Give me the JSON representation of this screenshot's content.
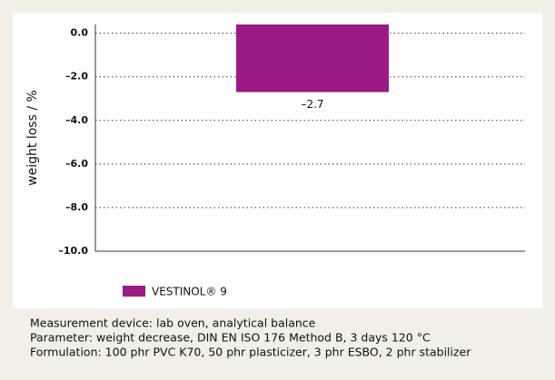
{
  "chart_data": {
    "type": "bar",
    "ylabel": "weight loss / %",
    "series": [
      {
        "name": "VESTINOL® 9",
        "color": "#9c1a84",
        "values": [
          -2.7
        ],
        "value_labels": [
          "–2.7"
        ]
      }
    ],
    "ylim": [
      0.4,
      -10
    ],
    "yticks": [
      {
        "value": 0,
        "label": "0.0"
      },
      {
        "value": -2,
        "label": "–2.0"
      },
      {
        "value": -4,
        "label": "–4.0"
      },
      {
        "value": -6,
        "label": "–6.0"
      },
      {
        "value": -8,
        "label": "–8.0"
      },
      {
        "value": -10,
        "label": "–10.0"
      }
    ],
    "grid": true,
    "notes": [
      "Measurement device: lab oven, analytical balance",
      "Parameter: weight decrease, DIN EN ISO 176 Method B, 3 days 120 °C",
      "Formulation: 100 phr PVC K70, 50 phr plasticizer, 3 phr ESBO, 2 phr stabilizer"
    ]
  }
}
